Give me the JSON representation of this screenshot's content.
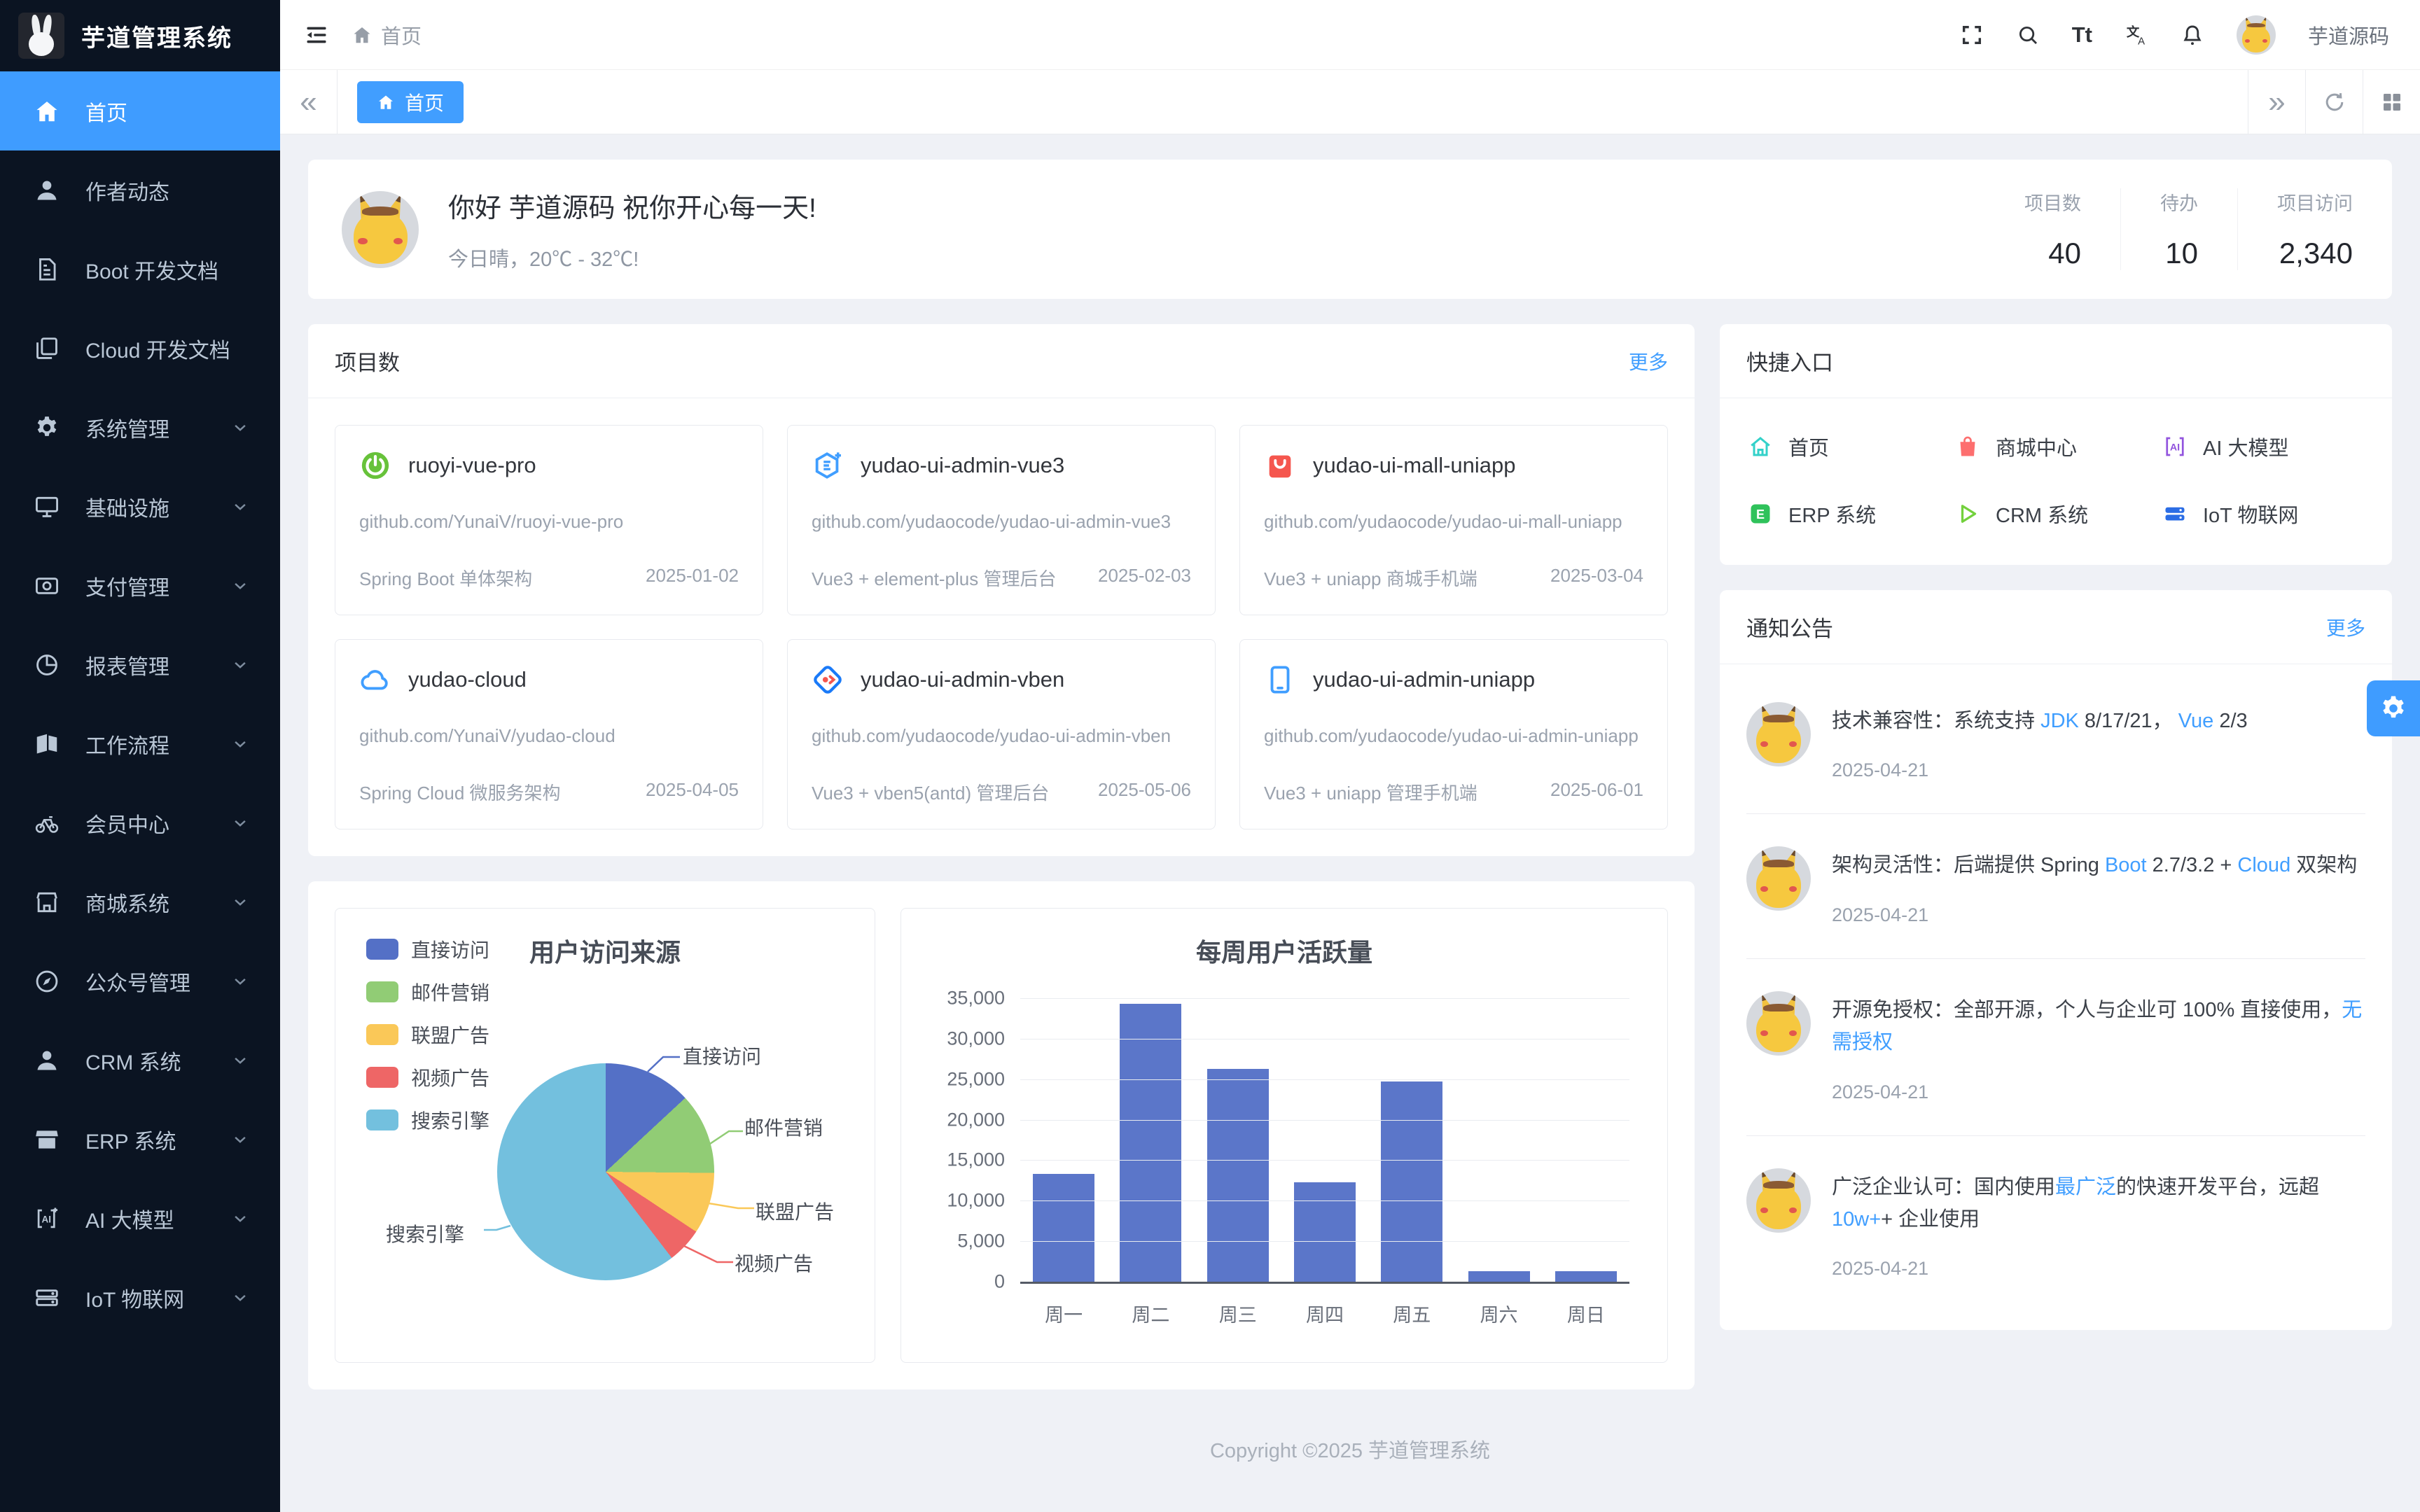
{
  "app": {
    "copyright": "Copyright ©2025 芋道管理系统"
  },
  "sidebar": {
    "title": "芋道管理系统",
    "items": [
      {
        "label": "首页",
        "icon": "home-icon",
        "active": true,
        "expandable": false
      },
      {
        "label": "作者动态",
        "icon": "user-icon",
        "active": false,
        "expandable": false
      },
      {
        "label": "Boot 开发文档",
        "icon": "document-icon",
        "active": false,
        "expandable": false
      },
      {
        "label": "Cloud 开发文档",
        "icon": "documents-icon",
        "active": false,
        "expandable": false
      },
      {
        "label": "系统管理",
        "icon": "gear-icon",
        "active": false,
        "expandable": true
      },
      {
        "label": "基础设施",
        "icon": "monitor-icon",
        "active": false,
        "expandable": true
      },
      {
        "label": "支付管理",
        "icon": "payment-icon",
        "active": false,
        "expandable": true
      },
      {
        "label": "报表管理",
        "icon": "report-icon",
        "active": false,
        "expandable": true
      },
      {
        "label": "工作流程",
        "icon": "workflow-icon",
        "active": false,
        "expandable": true
      },
      {
        "label": "会员中心",
        "icon": "member-icon",
        "active": false,
        "expandable": true
      },
      {
        "label": "商城系统",
        "icon": "shop-icon",
        "active": false,
        "expandable": true
      },
      {
        "label": "公众号管理",
        "icon": "compass-icon",
        "active": false,
        "expandable": true
      },
      {
        "label": "CRM 系统",
        "icon": "crm-icon",
        "active": false,
        "expandable": true
      },
      {
        "label": "ERP 系统",
        "icon": "erp-icon",
        "active": false,
        "expandable": true
      },
      {
        "label": "AI 大模型",
        "icon": "ai-icon",
        "active": false,
        "expandable": true
      },
      {
        "label": "IoT 物联网",
        "icon": "iot-icon",
        "active": false,
        "expandable": true
      }
    ]
  },
  "header": {
    "breadcrumb": "首页",
    "user": "芋道源码"
  },
  "tabs": {
    "active": "首页"
  },
  "greeting": {
    "title": "你好 芋道源码 祝你开心每一天!",
    "subtitle": "今日晴，20℃ - 32℃!",
    "stats": [
      {
        "label": "项目数",
        "value": "40"
      },
      {
        "label": "待办",
        "value": "10"
      },
      {
        "label": "项目访问",
        "value": "2,340"
      }
    ]
  },
  "projects": {
    "title": "项目数",
    "more": "更多",
    "cards": [
      {
        "name": "ruoyi-vue-pro",
        "icon": "spring-icon",
        "url": "github.com/YunaiV/ruoyi-vue-pro",
        "desc": "Spring Boot 单体架构",
        "date": "2025-01-02"
      },
      {
        "name": "yudao-ui-admin-vue3",
        "icon": "element-plus-icon",
        "url": "github.com/yudaocode/yudao-ui-admin-vue3",
        "desc": "Vue3 + element-plus 管理后台",
        "date": "2025-02-03"
      },
      {
        "name": "yudao-ui-mall-uniapp",
        "icon": "mall-bag-icon",
        "url": "github.com/yudaocode/yudao-ui-mall-uniapp",
        "desc": "Vue3 + uniapp 商城手机端",
        "date": "2025-03-04"
      },
      {
        "name": "yudao-cloud",
        "icon": "cloud-icon",
        "url": "github.com/YunaiV/yudao-cloud",
        "desc": "Spring Cloud 微服务架构",
        "date": "2025-04-05"
      },
      {
        "name": "yudao-ui-admin-vben",
        "icon": "vben-icon",
        "url": "github.com/yudaocode/yudao-ui-admin-vben",
        "desc": "Vue3 + vben5(antd) 管理后台",
        "date": "2025-05-06"
      },
      {
        "name": "yudao-ui-admin-uniapp",
        "icon": "phone-icon",
        "url": "github.com/yudaocode/yudao-ui-admin-uniapp",
        "desc": "Vue3 + uniapp 管理手机端",
        "date": "2025-06-01"
      }
    ]
  },
  "quick": {
    "title": "快捷入口",
    "items": [
      {
        "label": "首页",
        "icon": "home-outline-icon",
        "color": "#33d1c9"
      },
      {
        "label": "商城中心",
        "icon": "mall-center-icon",
        "color": "#fd6f6f"
      },
      {
        "label": "AI 大模型",
        "icon": "ai-brackets-icon",
        "color": "#9254de"
      },
      {
        "label": "ERP 系统",
        "icon": "erp-square-icon",
        "color": "#2fc25b"
      },
      {
        "label": "CRM 系统",
        "icon": "crm-triangle-icon",
        "color": "#73d13d"
      },
      {
        "label": "IoT 物联网",
        "icon": "iot-server-icon",
        "color": "#2b6de5"
      }
    ]
  },
  "notices": {
    "title": "通知公告",
    "more": "更多",
    "items": [
      {
        "date": "2025-04-21",
        "segments": [
          {
            "text": "技术兼容性：系统支持 "
          },
          {
            "text": "JDK",
            "blue": true
          },
          {
            "text": " 8/17/21， "
          },
          {
            "text": "Vue",
            "blue": true
          },
          {
            "text": " 2/3"
          }
        ]
      },
      {
        "date": "2025-04-21",
        "segments": [
          {
            "text": "架构灵活性：后端提供 Spring "
          },
          {
            "text": "Boot",
            "blue": true
          },
          {
            "text": " 2.7/3.2 + "
          },
          {
            "text": "Cloud",
            "blue": true
          },
          {
            "text": " 双架构"
          }
        ]
      },
      {
        "date": "2025-04-21",
        "segments": [
          {
            "text": "开源免授权：全部开源，个人与企业可 100% 直接使用，"
          },
          {
            "text": "无需授权",
            "blue": true
          }
        ]
      },
      {
        "date": "2025-04-21",
        "segments": [
          {
            "text": "广泛企业认可：国内使用"
          },
          {
            "text": "最广泛",
            "blue": true
          },
          {
            "text": "的快速开发平台，远超 "
          },
          {
            "text": "10w+",
            "blue": true
          },
          {
            "text": "+ 企业使用"
          }
        ]
      }
    ]
  },
  "chart_data": [
    {
      "type": "pie",
      "title": "用户访问来源",
      "legend_position": "top-left",
      "series": [
        {
          "name": "直接访问",
          "value": 335,
          "color": "#5470c6"
        },
        {
          "name": "邮件营销",
          "value": 310,
          "color": "#91cc75"
        },
        {
          "name": "联盟广告",
          "value": 234,
          "color": "#fac858"
        },
        {
          "name": "视频广告",
          "value": 135,
          "color": "#ee6666"
        },
        {
          "name": "搜索引擎",
          "value": 1548,
          "color": "#73c0de"
        }
      ]
    },
    {
      "type": "bar",
      "title": "每周用户活跃量",
      "categories": [
        "周一",
        "周二",
        "周三",
        "周四",
        "周五",
        "周六",
        "周日"
      ],
      "values": [
        13300,
        34300,
        26300,
        12300,
        24700,
        1300,
        1300
      ],
      "ylim": [
        0,
        35000
      ],
      "ytick_step": 5000,
      "bar_color": "#5b76c9",
      "grid": true
    }
  ]
}
